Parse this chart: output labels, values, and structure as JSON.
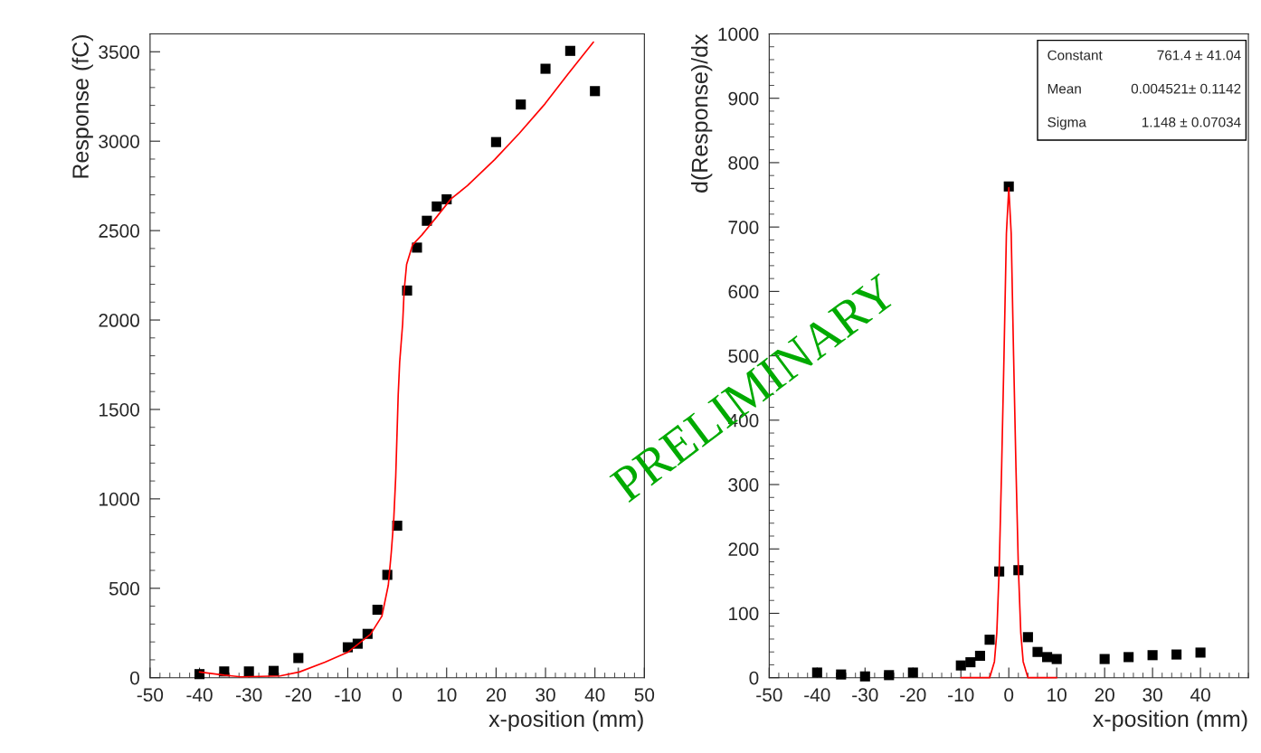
{
  "chart_data": [
    {
      "type": "scatter",
      "xlabel": "x-position (mm)",
      "ylabel": "Response (fC)",
      "xlim": [
        -50,
        50
      ],
      "ylim": [
        0,
        3600
      ],
      "xticks": [
        -50,
        -40,
        -30,
        -20,
        -10,
        0,
        10,
        20,
        30,
        40,
        50
      ],
      "yticks": [
        0,
        500,
        1000,
        1500,
        2000,
        2500,
        3000,
        3500
      ],
      "grid": false,
      "legend": false,
      "annotations": [
        "PRELIMINARY"
      ],
      "series": [
        {
          "color": "#000000",
          "marker": "square",
          "x": [
            -40,
            -35,
            -30,
            -25,
            -20,
            -10,
            -8,
            -6,
            -4,
            -2,
            0,
            2,
            4,
            6,
            8,
            10,
            20,
            25,
            30,
            35,
            40
          ],
          "values": [
            20,
            35,
            35,
            38,
            110,
            170,
            190,
            245,
            380,
            575,
            850,
            2165,
            2405,
            2555,
            2635,
            2675,
            2995,
            3205,
            3405,
            3505,
            3280
          ]
        },
        {
          "type": "line",
          "color": "#ff0000",
          "marker": "none",
          "line_style": "solid",
          "x": [
            -40,
            -35,
            -31.6,
            -23.7,
            -19.8,
            -14.6,
            -10,
            -5.4,
            -3.1,
            -1.8,
            -1.2,
            -0.7,
            -0.3,
            0,
            0.2,
            0.5,
            1.1,
            1.4,
            1.9,
            3.1,
            5,
            7.7,
            10.9,
            14.2,
            19.7,
            24.7,
            29.9,
            34.5,
            39.7
          ],
          "values": [
            32,
            14,
            5,
            10,
            32,
            87,
            142,
            243,
            344,
            518,
            701,
            885,
            1125,
            1398,
            1582,
            1765,
            1980,
            2163,
            2311,
            2420,
            2476,
            2567,
            2678,
            2751,
            2897,
            3044,
            3209,
            3374,
            3554
          ]
        }
      ]
    },
    {
      "type": "scatter",
      "xlabel": "x-position (mm)",
      "ylabel": "d(Response)/dx",
      "xlim": [
        -50,
        50
      ],
      "ylim": [
        0,
        1000
      ],
      "xticks": [
        -50,
        -40,
        -30,
        -20,
        -10,
        0,
        10,
        20,
        30,
        40
      ],
      "yticks": [
        0,
        100,
        200,
        300,
        400,
        500,
        600,
        700,
        800,
        900,
        1000
      ],
      "grid": false,
      "legend": false,
      "annotations": [
        "Constant",
        "761.4 ± 41.04",
        "Mean",
        "0.004521± 0.1142",
        "Sigma",
        "1.148 ± 0.07034"
      ],
      "series": [
        {
          "color": "#000000",
          "marker": "square",
          "x": [
            -40,
            -35,
            -30,
            -25,
            -20,
            -10,
            -8,
            -6,
            -4,
            -2,
            0,
            2,
            4,
            6,
            8,
            10,
            20,
            25,
            30,
            35,
            40
          ],
          "values": [
            8,
            5,
            2,
            4,
            8,
            19,
            24,
            34,
            59,
            165,
            763,
            167,
            63,
            40,
            32,
            29,
            29,
            32,
            35,
            36,
            39
          ]
        },
        {
          "type": "line",
          "color": "#ff0000",
          "marker": "none",
          "line_style": "solid",
          "x": [
            -10,
            -4,
            -3,
            -2.5,
            -2,
            -1.5,
            -1,
            -0.5,
            0,
            0.5,
            1,
            1.5,
            2,
            2.5,
            3,
            4,
            10
          ],
          "values": [
            0,
            0,
            25,
            70,
            170,
            325,
            500,
            690,
            761,
            690,
            500,
            325,
            170,
            70,
            25,
            0,
            0
          ]
        }
      ]
    }
  ]
}
